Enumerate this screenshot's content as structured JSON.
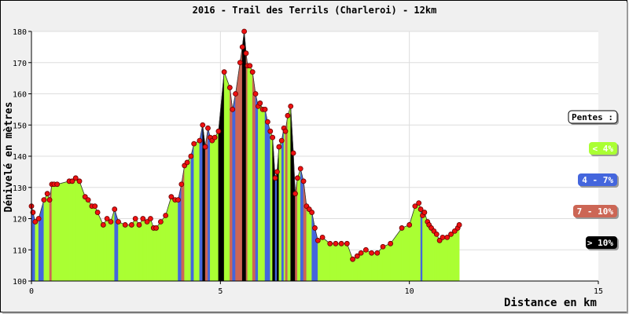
{
  "chart_data": {
    "type": "area",
    "title": "2016 - Trail des Terrils (Charleroi) - 12km",
    "xlabel": "Distance en km",
    "ylabel": "Dénivelé en mètres",
    "xlim": [
      0,
      15
    ],
    "ylim": [
      100,
      180
    ],
    "x_ticks": [
      "0",
      "5",
      "10",
      "15"
    ],
    "y_ticks": [
      "100",
      "110",
      "120",
      "130",
      "140",
      "150",
      "160",
      "170",
      "180"
    ],
    "grid": true,
    "legend_title": "Pentes :",
    "legend_position": "right",
    "legend": [
      {
        "label": "< 4%",
        "color": "#aaff33"
      },
      {
        "label": "4 - 7%",
        "color": "#4466dd"
      },
      {
        "label": "7 - 10%",
        "color": "#cc6655"
      },
      {
        "label": "> 10%",
        "color": "#000000"
      }
    ],
    "series": [
      {
        "x": [
          0.0,
          0.04,
          0.1,
          0.19,
          0.33,
          0.42,
          0.48,
          0.54,
          0.6,
          0.68,
          1.0,
          1.08,
          1.17,
          1.27,
          1.42,
          1.5,
          1.6,
          1.68,
          1.75,
          1.9,
          2.0,
          2.1,
          2.2,
          2.3,
          2.48,
          2.65,
          2.75,
          2.85,
          2.95,
          3.06,
          3.15,
          3.23,
          3.3,
          3.42,
          3.55,
          3.7,
          3.8,
          3.88,
          3.97,
          4.05,
          4.12,
          4.22,
          4.3,
          4.45,
          4.53,
          4.6,
          4.67,
          4.73,
          4.78,
          4.85,
          4.95,
          5.1,
          5.25,
          5.32,
          5.4,
          5.52,
          5.58,
          5.63,
          5.68,
          5.72,
          5.78,
          5.85,
          5.93,
          6.0,
          6.05,
          6.12,
          6.18,
          6.25,
          6.32,
          6.38,
          6.45,
          6.5,
          6.55,
          6.62,
          6.68,
          6.72,
          6.78,
          6.86,
          6.93,
          6.98,
          7.04,
          7.12,
          7.2,
          7.28,
          7.35,
          7.42,
          7.5,
          7.58,
          7.7,
          7.9,
          8.05,
          8.2,
          8.35,
          8.5,
          8.62,
          8.72,
          8.85,
          9.0,
          9.15,
          9.3,
          9.5,
          9.8,
          10.0,
          10.15,
          10.25,
          10.3,
          10.35,
          10.4,
          10.48,
          10.52,
          10.58,
          10.65,
          10.72,
          10.8,
          10.88,
          11.0,
          11.1,
          11.2,
          11.28,
          11.32
        ],
        "y": [
          124,
          122,
          119,
          120,
          126,
          128,
          126,
          131,
          131,
          131,
          132,
          132,
          133,
          132,
          127,
          126,
          124,
          124,
          122,
          118,
          120,
          119,
          123,
          119,
          118,
          118,
          120,
          118,
          120,
          119,
          120,
          117,
          117,
          119,
          121,
          127,
          126,
          126,
          131,
          137,
          138,
          140,
          144,
          145,
          150,
          143,
          149,
          146,
          145,
          146,
          148,
          167,
          162,
          155,
          160,
          170,
          175,
          180,
          173,
          169,
          169,
          167,
          160,
          156,
          157,
          155,
          155,
          151,
          148,
          146,
          133,
          135,
          143,
          145,
          149,
          148,
          153,
          156,
          141,
          128,
          133,
          136,
          132,
          124,
          123,
          122,
          117,
          113,
          114,
          112,
          112,
          112,
          112,
          107,
          108,
          109,
          110,
          109,
          109,
          111,
          112,
          117,
          118,
          124,
          125,
          123,
          121,
          122,
          119,
          118,
          117,
          116,
          115,
          113,
          114,
          114,
          115,
          116,
          117,
          118
        ]
      }
    ]
  }
}
